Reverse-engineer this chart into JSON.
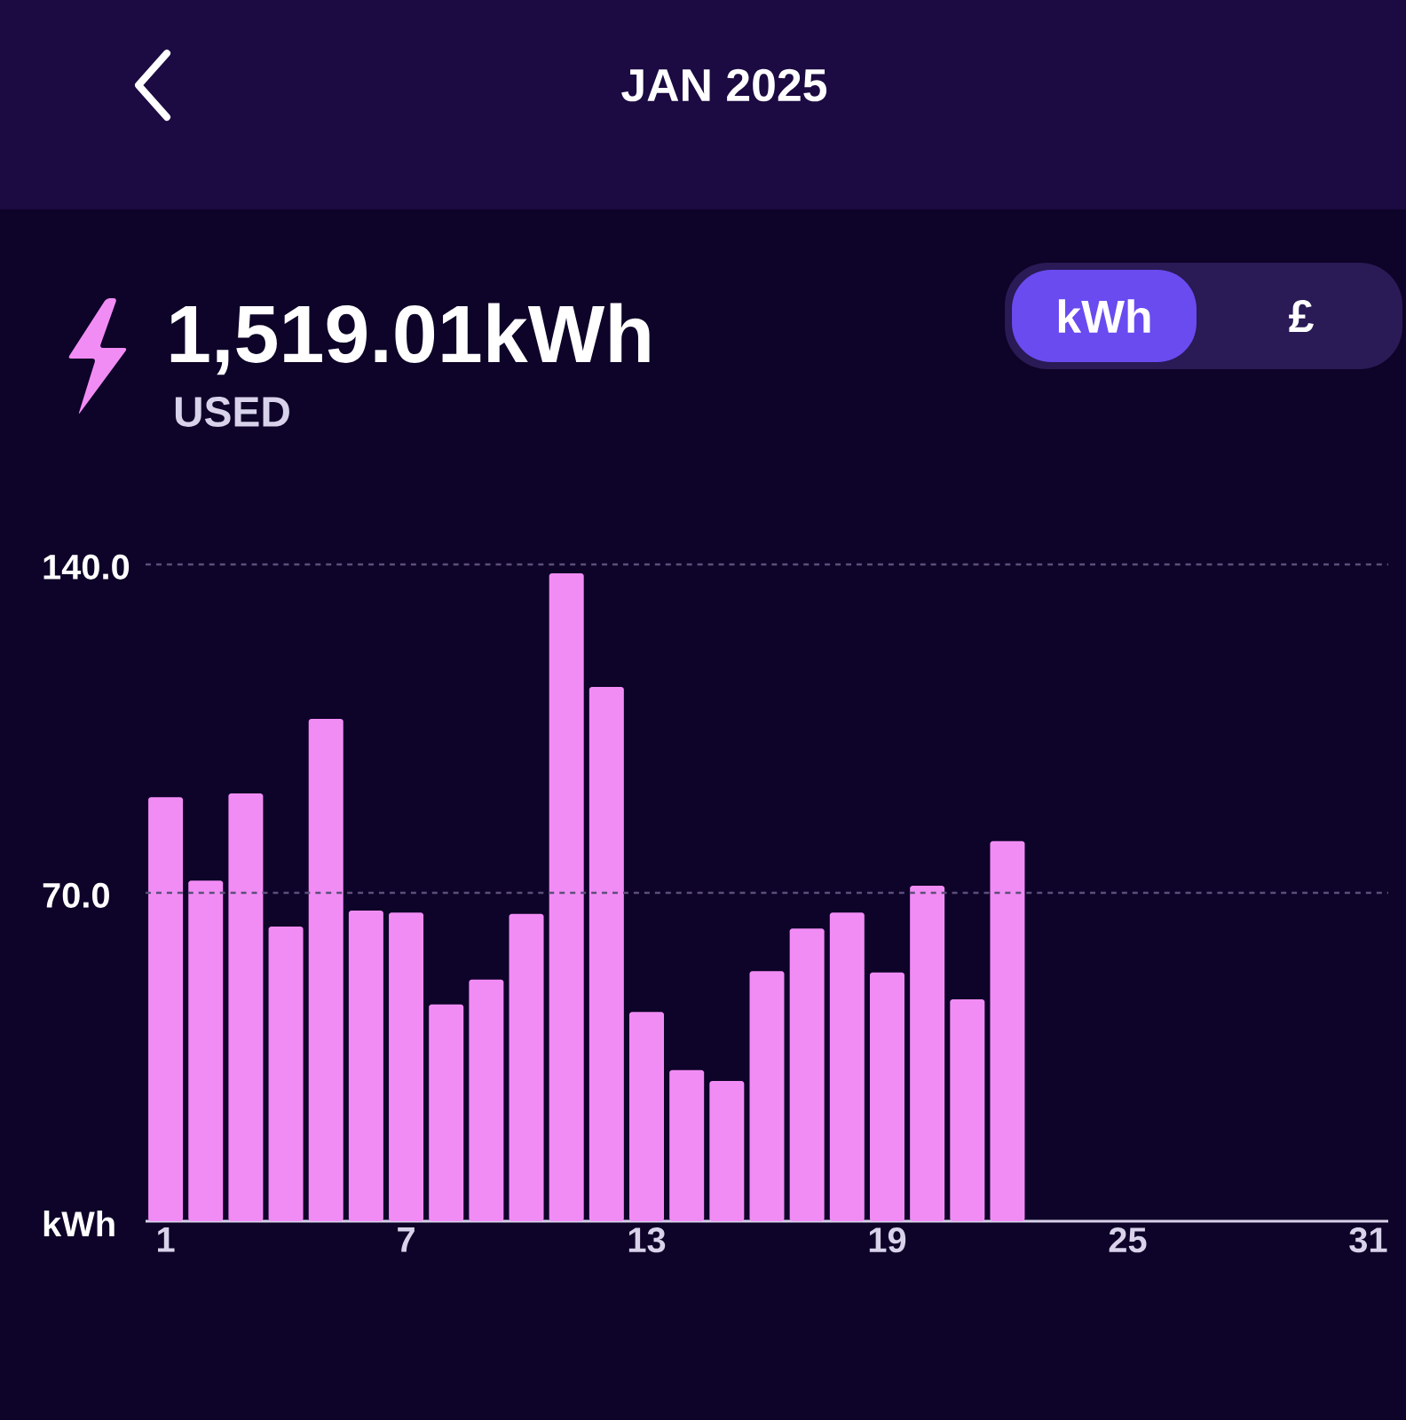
{
  "chart_data": {
    "type": "bar",
    "title": "JAN 2025",
    "subtitle": "1,519.01kWh",
    "annotations": [
      "USED",
      "kWh",
      "£"
    ],
    "categories": [
      "1",
      null,
      null,
      null,
      null,
      null,
      "7",
      null,
      null,
      null,
      null,
      null,
      "13",
      null,
      null,
      null,
      null,
      null,
      "19",
      null,
      null,
      null,
      null,
      null,
      "25",
      null,
      null,
      null,
      null,
      null,
      "31"
    ],
    "values": [
      90.4,
      72.6,
      91.2,
      62.8,
      107.1,
      66.2,
      65.8,
      46.2,
      51.5,
      65.5,
      138.1,
      113.9,
      44.6,
      32.2,
      29.9,
      53.3,
      62.4,
      65.8,
      53.0,
      71.5,
      47.3,
      81.0,
      null,
      null,
      null,
      null,
      null,
      null,
      null,
      null,
      null
    ],
    "color": "#f28cf5",
    "ylim": [
      0,
      140
    ],
    "yticks": [
      {
        "value": 0,
        "label": "kWh"
      },
      {
        "value": 70,
        "label": "70.0"
      },
      {
        "value": 140,
        "label": "140.0"
      }
    ],
    "ref_lines": [
      {
        "axis": "y",
        "value": 70,
        "color": "#5c4f7a",
        "line_style": "dashed"
      },
      {
        "axis": "y",
        "value": 140,
        "color": "#5c4f7a",
        "line_style": "dashed"
      }
    ]
  }
}
